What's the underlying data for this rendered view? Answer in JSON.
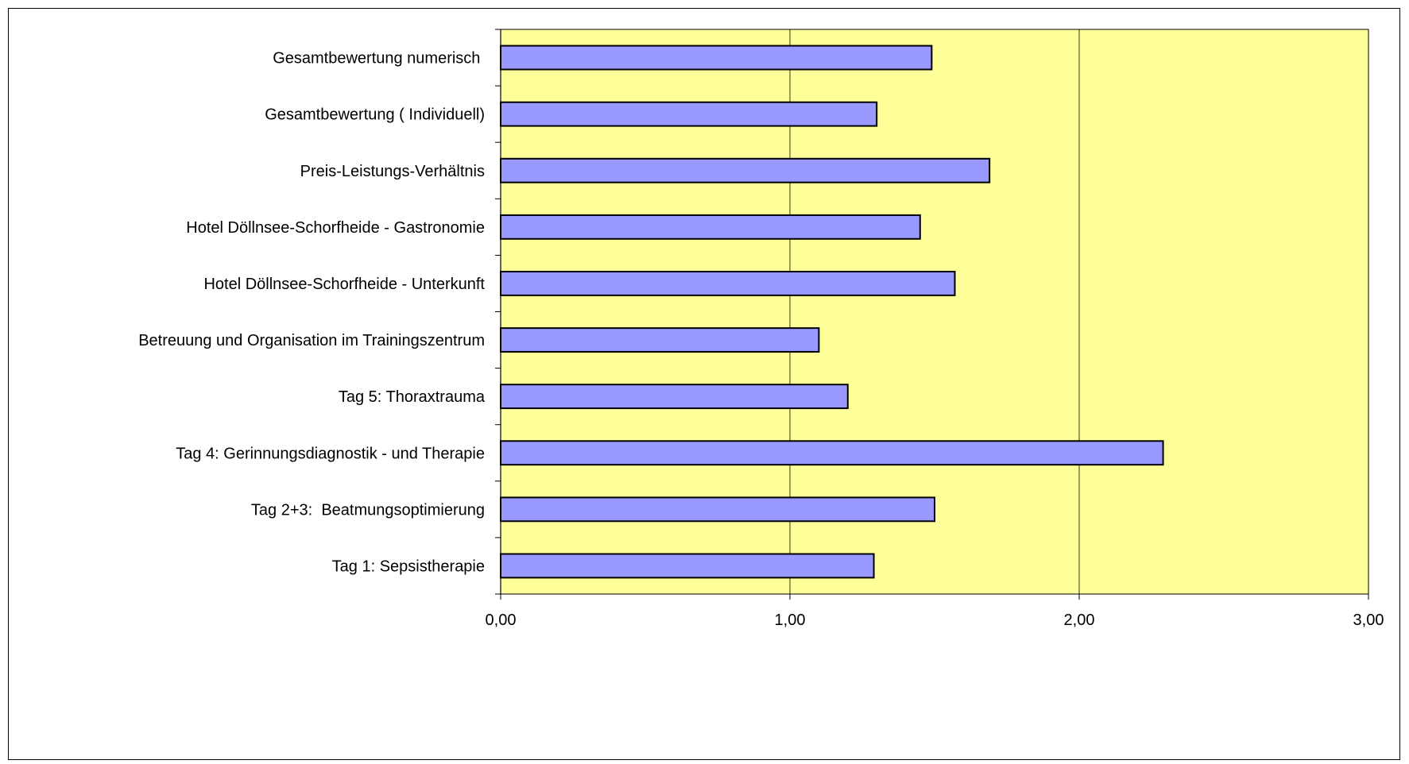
{
  "chart_data": {
    "type": "bar",
    "orientation": "horizontal",
    "categories": [
      "Gesamtbewertung numerisch ",
      "Gesamtbewertung ( Individuell)",
      "Preis-Leistungs-Verhältnis",
      "Hotel Döllnsee-Schorfheide - Gastronomie",
      "Hotel Döllnsee-Schorfheide - Unterkunft",
      "Betreuung und Organisation im Trainingszentrum",
      "Tag 5: Thoraxtrauma",
      "Tag 4: Gerinnungsdiagnostik - und Therapie",
      "Tag 2+3:  Beatmungsoptimierung",
      "Tag 1: Sepsistherapie"
    ],
    "values": [
      1.49,
      1.3,
      1.69,
      1.45,
      1.57,
      1.1,
      1.2,
      2.29,
      1.5,
      1.29
    ],
    "xlim": [
      0,
      3
    ],
    "xticks": [
      "0,00",
      "1,00",
      "2,00",
      "3,00"
    ],
    "title": "",
    "xlabel": "",
    "ylabel": "",
    "grid": "vertical",
    "legend": "none",
    "colors": {
      "plot_background": "#ffff99",
      "bar_fill": "#9999ff",
      "bar_stroke": "#000000",
      "gridline": "#000000",
      "frame": "#000000"
    }
  }
}
